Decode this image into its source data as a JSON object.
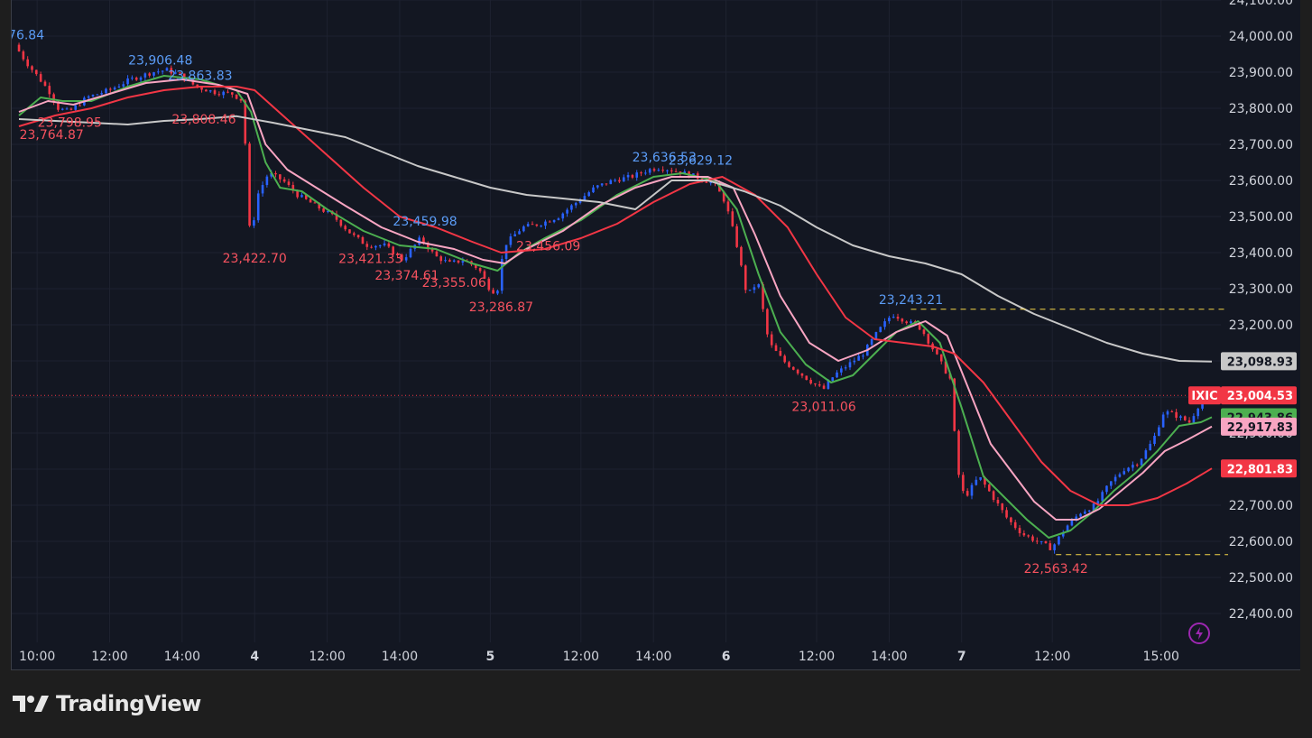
{
  "brand": {
    "name": "TradingView"
  },
  "colors": {
    "background": "#131722",
    "grid": "#1e2230",
    "up": "#2962ff",
    "down": "#f23645",
    "ma_fast": "#4caf50",
    "ma_mid": "#f8a5c2",
    "ma_slow": "#f23645",
    "ma_long": "#c8c8c8",
    "high_label": "#5b9cf6",
    "low_label": "#f7525f",
    "guide": "#f5d547"
  },
  "chart_data": {
    "type": "line",
    "symbol": "IXIC",
    "ylim": [
      22360,
      24100
    ],
    "y_ticks": [
      22400,
      22500,
      22600,
      22700,
      22800,
      22900,
      23000,
      23100,
      23200,
      23300,
      23400,
      23500,
      23600,
      23700,
      23800,
      23900,
      24000,
      24100
    ],
    "y_tick_labels": [
      "22,400.00",
      "22,500.00",
      "22,600.00",
      "22,700.00",
      "22,800.00",
      "22,900.00",
      "23,000.00",
      "23,100.00",
      "23,200.00",
      "23,300.00",
      "23,400.00",
      "23,500.00",
      "23,600.00",
      "23,700.00",
      "23,800.00",
      "23,900.00",
      "24,000.00",
      "24,100.00"
    ],
    "x_ticks": [
      {
        "t": 0.5,
        "label": "10:00",
        "bold": false
      },
      {
        "t": 2.5,
        "label": "12:00",
        "bold": false
      },
      {
        "t": 4.5,
        "label": "14:00",
        "bold": false
      },
      {
        "t": 6.5,
        "label": "4",
        "bold": true
      },
      {
        "t": 8.5,
        "label": "12:00",
        "bold": false
      },
      {
        "t": 10.5,
        "label": "14:00",
        "bold": false
      },
      {
        "t": 13,
        "label": "5",
        "bold": true
      },
      {
        "t": 15.5,
        "label": "12:00",
        "bold": false
      },
      {
        "t": 17.5,
        "label": "14:00",
        "bold": false
      },
      {
        "t": 19.5,
        "label": "6",
        "bold": true
      },
      {
        "t": 22,
        "label": "12:00",
        "bold": false
      },
      {
        "t": 24,
        "label": "14:00",
        "bold": false
      },
      {
        "t": 26,
        "label": "7",
        "bold": true
      },
      {
        "t": 28.5,
        "label": "12:00",
        "bold": false
      },
      {
        "t": 31.5,
        "label": "15:00",
        "bold": false
      }
    ],
    "price_path": [
      [
        0,
        23976
      ],
      [
        0.3,
        23930
      ],
      [
        0.7,
        23880
      ],
      [
        1.0,
        23840
      ],
      [
        1.2,
        23800
      ],
      [
        1.5,
        23790
      ],
      [
        2.0,
        23830
      ],
      [
        2.6,
        23850
      ],
      [
        3.2,
        23880
      ],
      [
        3.8,
        23900
      ],
      [
        4.2,
        23906
      ],
      [
        4.6,
        23890
      ],
      [
        5.0,
        23860
      ],
      [
        5.5,
        23845
      ],
      [
        6.0,
        23840
      ],
      [
        6.3,
        23820
      ],
      [
        6.5,
        23430
      ],
      [
        6.7,
        23560
      ],
      [
        7.0,
        23620
      ],
      [
        7.4,
        23600
      ],
      [
        7.8,
        23560
      ],
      [
        8.3,
        23530
      ],
      [
        8.8,
        23500
      ],
      [
        9.3,
        23450
      ],
      [
        9.7,
        23421
      ],
      [
        10.2,
        23420
      ],
      [
        10.7,
        23380
      ],
      [
        11.2,
        23440
      ],
      [
        11.6,
        23390
      ],
      [
        12.0,
        23370
      ],
      [
        12.4,
        23380
      ],
      [
        12.8,
        23355
      ],
      [
        13.1,
        23300
      ],
      [
        13.3,
        23287
      ],
      [
        13.5,
        23420
      ],
      [
        14.0,
        23470
      ],
      [
        14.5,
        23480
      ],
      [
        15.0,
        23500
      ],
      [
        15.5,
        23540
      ],
      [
        16.0,
        23580
      ],
      [
        16.5,
        23600
      ],
      [
        17.0,
        23610
      ],
      [
        17.5,
        23630
      ],
      [
        17.8,
        23636
      ],
      [
        18.3,
        23625
      ],
      [
        18.8,
        23610
      ],
      [
        19.3,
        23590
      ],
      [
        19.6,
        23540
      ],
      [
        19.9,
        23430
      ],
      [
        20.2,
        23280
      ],
      [
        20.5,
        23320
      ],
      [
        20.8,
        23150
      ],
      [
        21.2,
        23100
      ],
      [
        21.6,
        23070
      ],
      [
        22.0,
        23040
      ],
      [
        22.3,
        23020
      ],
      [
        22.6,
        23060
      ],
      [
        23.0,
        23090
      ],
      [
        23.4,
        23120
      ],
      [
        23.8,
        23180
      ],
      [
        24.2,
        23230
      ],
      [
        24.6,
        23210
      ],
      [
        25.0,
        23190
      ],
      [
        25.4,
        23120
      ],
      [
        25.8,
        23050
      ],
      [
        26.0,
        22800
      ],
      [
        26.2,
        22720
      ],
      [
        26.6,
        22780
      ],
      [
        27.0,
        22720
      ],
      [
        27.4,
        22660
      ],
      [
        27.8,
        22620
      ],
      [
        28.2,
        22600
      ],
      [
        28.6,
        22580
      ],
      [
        29.0,
        22640
      ],
      [
        29.4,
        22680
      ],
      [
        29.8,
        22700
      ],
      [
        30.2,
        22760
      ],
      [
        30.6,
        22800
      ],
      [
        31.0,
        22820
      ],
      [
        31.4,
        22880
      ],
      [
        31.7,
        22960
      ],
      [
        32.0,
        22950
      ],
      [
        32.4,
        22930
      ],
      [
        32.8,
        23004
      ]
    ],
    "series": [
      {
        "name": "",
        "color_key": "ma_fast",
        "points": [
          [
            0,
            23780
          ],
          [
            0.6,
            23830
          ],
          [
            1.2,
            23820
          ],
          [
            2,
            23820
          ],
          [
            3,
            23860
          ],
          [
            4,
            23890
          ],
          [
            5,
            23880
          ],
          [
            6,
            23850
          ],
          [
            6.4,
            23790
          ],
          [
            6.8,
            23650
          ],
          [
            7.2,
            23580
          ],
          [
            7.8,
            23570
          ],
          [
            8.5,
            23520
          ],
          [
            9.5,
            23460
          ],
          [
            10.5,
            23420
          ],
          [
            11.5,
            23410
          ],
          [
            12.5,
            23370
          ],
          [
            13.2,
            23350
          ],
          [
            13.8,
            23400
          ],
          [
            14.5,
            23440
          ],
          [
            15.5,
            23490
          ],
          [
            16.5,
            23560
          ],
          [
            17.5,
            23610
          ],
          [
            18.3,
            23620
          ],
          [
            19.2,
            23600
          ],
          [
            19.8,
            23520
          ],
          [
            20.4,
            23340
          ],
          [
            21,
            23180
          ],
          [
            21.7,
            23090
          ],
          [
            22.4,
            23040
          ],
          [
            23,
            23060
          ],
          [
            23.6,
            23120
          ],
          [
            24.2,
            23180
          ],
          [
            24.8,
            23210
          ],
          [
            25.4,
            23150
          ],
          [
            26,
            22970
          ],
          [
            26.6,
            22780
          ],
          [
            27.2,
            22720
          ],
          [
            27.8,
            22660
          ],
          [
            28.4,
            22610
          ],
          [
            29,
            22630
          ],
          [
            29.6,
            22680
          ],
          [
            30.2,
            22740
          ],
          [
            30.8,
            22790
          ],
          [
            31.4,
            22850
          ],
          [
            32,
            22920
          ],
          [
            32.6,
            22930
          ],
          [
            32.9,
            22944
          ]
        ]
      },
      {
        "name": "",
        "color_key": "ma_mid",
        "points": [
          [
            0,
            23790
          ],
          [
            0.8,
            23820
          ],
          [
            1.5,
            23810
          ],
          [
            2.5,
            23840
          ],
          [
            3.5,
            23870
          ],
          [
            4.5,
            23880
          ],
          [
            5.5,
            23865
          ],
          [
            6.3,
            23840
          ],
          [
            6.8,
            23700
          ],
          [
            7.4,
            23630
          ],
          [
            8.2,
            23580
          ],
          [
            9,
            23530
          ],
          [
            10,
            23470
          ],
          [
            11,
            23430
          ],
          [
            12,
            23410
          ],
          [
            12.8,
            23380
          ],
          [
            13.4,
            23370
          ],
          [
            14,
            23410
          ],
          [
            15,
            23460
          ],
          [
            16,
            23530
          ],
          [
            17,
            23580
          ],
          [
            18,
            23610
          ],
          [
            19,
            23610
          ],
          [
            19.7,
            23580
          ],
          [
            20.3,
            23450
          ],
          [
            21,
            23280
          ],
          [
            21.8,
            23150
          ],
          [
            22.6,
            23100
          ],
          [
            23.4,
            23130
          ],
          [
            24.2,
            23180
          ],
          [
            25,
            23210
          ],
          [
            25.6,
            23170
          ],
          [
            26.2,
            23020
          ],
          [
            26.8,
            22870
          ],
          [
            27.4,
            22790
          ],
          [
            28,
            22710
          ],
          [
            28.6,
            22660
          ],
          [
            29.2,
            22660
          ],
          [
            29.8,
            22690
          ],
          [
            30.4,
            22740
          ],
          [
            31,
            22790
          ],
          [
            31.6,
            22850
          ],
          [
            32.2,
            22880
          ],
          [
            32.9,
            22918
          ]
        ]
      },
      {
        "name": "",
        "color_key": "ma_slow",
        "points": [
          [
            0,
            23750
          ],
          [
            1,
            23780
          ],
          [
            2,
            23800
          ],
          [
            3,
            23830
          ],
          [
            4,
            23850
          ],
          [
            5,
            23860
          ],
          [
            6,
            23860
          ],
          [
            6.5,
            23850
          ],
          [
            7.5,
            23760
          ],
          [
            8.5,
            23670
          ],
          [
            9.5,
            23580
          ],
          [
            10.5,
            23500
          ],
          [
            11.5,
            23470
          ],
          [
            12.5,
            23430
          ],
          [
            13.3,
            23400
          ],
          [
            14.5,
            23410
          ],
          [
            15.5,
            23440
          ],
          [
            16.5,
            23480
          ],
          [
            17.5,
            23540
          ],
          [
            18.5,
            23590
          ],
          [
            19.4,
            23610
          ],
          [
            20.3,
            23560
          ],
          [
            21.2,
            23470
          ],
          [
            22,
            23340
          ],
          [
            22.8,
            23220
          ],
          [
            23.6,
            23160
          ],
          [
            24.4,
            23150
          ],
          [
            25.2,
            23140
          ],
          [
            25.8,
            23120
          ],
          [
            26.6,
            23040
          ],
          [
            27.4,
            22930
          ],
          [
            28.2,
            22820
          ],
          [
            29,
            22740
          ],
          [
            29.8,
            22700
          ],
          [
            30.6,
            22700
          ],
          [
            31.4,
            22720
          ],
          [
            32.2,
            22760
          ],
          [
            32.9,
            22802
          ]
        ]
      },
      {
        "name": "",
        "color_key": "ma_long",
        "points": [
          [
            0,
            23770
          ],
          [
            1,
            23765
          ],
          [
            2,
            23760
          ],
          [
            3,
            23755
          ],
          [
            4,
            23765
          ],
          [
            5,
            23770
          ],
          [
            6,
            23778
          ],
          [
            7,
            23760
          ],
          [
            8,
            23740
          ],
          [
            9,
            23720
          ],
          [
            10,
            23680
          ],
          [
            11,
            23640
          ],
          [
            12,
            23610
          ],
          [
            13,
            23580
          ],
          [
            14,
            23560
          ],
          [
            15,
            23550
          ],
          [
            16,
            23540
          ],
          [
            17,
            23520
          ],
          [
            18,
            23600
          ],
          [
            19,
            23600
          ],
          [
            20,
            23570
          ],
          [
            21,
            23530
          ],
          [
            22,
            23470
          ],
          [
            23,
            23420
          ],
          [
            24,
            23390
          ],
          [
            25,
            23370
          ],
          [
            26,
            23340
          ],
          [
            27,
            23280
          ],
          [
            28,
            23230
          ],
          [
            29,
            23190
          ],
          [
            30,
            23150
          ],
          [
            31,
            23120
          ],
          [
            32,
            23100
          ],
          [
            32.9,
            23098
          ]
        ]
      }
    ],
    "high_labels": [
      {
        "t": 0.2,
        "v": 23976,
        "label": "76.84"
      },
      {
        "t": 3.9,
        "v": 23906,
        "label": "23,906.48"
      },
      {
        "t": 5.0,
        "v": 23864,
        "label": "23,863.83"
      },
      {
        "t": 11.2,
        "v": 23460,
        "label": "23,459.98"
      },
      {
        "t": 17.8,
        "v": 23637,
        "label": "23,636.53"
      },
      {
        "t": 18.8,
        "v": 23629,
        "label": "23,629.12"
      },
      {
        "t": 24.6,
        "v": 23243,
        "label": "23,243.21"
      }
    ],
    "low_labels": [
      {
        "t": 1.4,
        "v": 23799,
        "label": "23,798.95"
      },
      {
        "t": 0.9,
        "v": 23765,
        "label": "23,764.87"
      },
      {
        "t": 5.1,
        "v": 23808,
        "label": "23,808.46"
      },
      {
        "t": 6.5,
        "v": 23423,
        "label": "23,422.70"
      },
      {
        "t": 9.7,
        "v": 23421,
        "label": "23,421.33"
      },
      {
        "t": 10.7,
        "v": 23375,
        "label": "23,374.61"
      },
      {
        "t": 12.0,
        "v": 23355,
        "label": "23,355.06"
      },
      {
        "t": 13.3,
        "v": 23287,
        "label": "23,286.87"
      },
      {
        "t": 14.6,
        "v": 23456,
        "label": "23,456.09"
      },
      {
        "t": 22.2,
        "v": 23011,
        "label": "23,011.06"
      },
      {
        "t": 28.6,
        "v": 22563,
        "label": "22,563.42"
      }
    ],
    "guides": [
      {
        "v": 23243,
        "t_from": 24.6
      },
      {
        "v": 22563,
        "t_from": 28.6
      }
    ],
    "current_price": 23004.53,
    "price_badges": [
      {
        "v": 23098.93,
        "label": "23,098.93",
        "bg": "#c8c8c8",
        "fg": "#131722",
        "tag": ""
      },
      {
        "v": 23004.53,
        "label": "23,004.53",
        "bg": "#f23645",
        "fg": "#ffffff",
        "tag": "IXIC"
      },
      {
        "v": 22943.86,
        "label": "22,943.86",
        "bg": "#4caf50",
        "fg": "#131722",
        "tag": ""
      },
      {
        "v": 22917.83,
        "label": "22,917.83",
        "bg": "#f8a5c2",
        "fg": "#131722",
        "tag": ""
      },
      {
        "v": 22801.83,
        "label": "22,801.83",
        "bg": "#f23645",
        "fg": "#ffffff",
        "tag": ""
      }
    ]
  }
}
